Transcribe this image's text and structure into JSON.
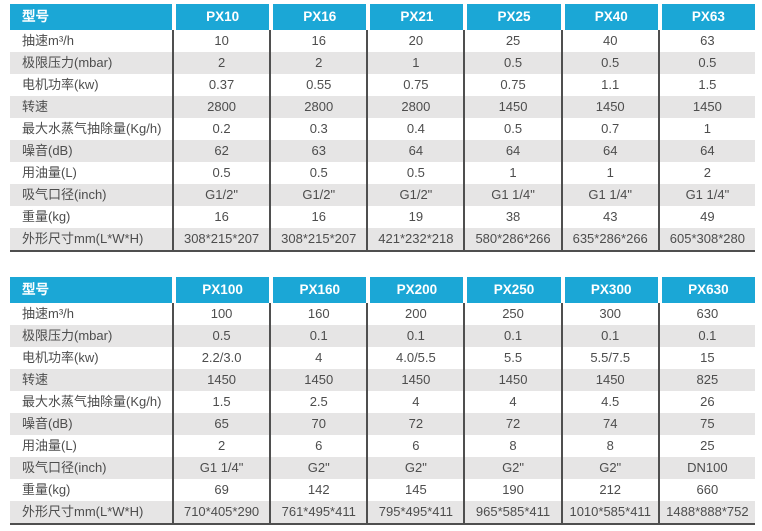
{
  "colors": {
    "header_bg": "#1ba7d6",
    "header_text": "#ffffff",
    "stripe_gray": "#e6e5e5",
    "body_text": "#4d4d4d",
    "separator": "#4f4f4f"
  },
  "tables": [
    {
      "corner_label": "型号",
      "columns": [
        "PX10",
        "PX16",
        "PX21",
        "PX25",
        "PX40",
        "PX63"
      ],
      "rows": [
        {
          "label": "抽速m³/h",
          "values": [
            "10",
            "16",
            "20",
            "25",
            "40",
            "63"
          ]
        },
        {
          "label": "极限压力(mbar)",
          "values": [
            "2",
            "2",
            "1",
            "0.5",
            "0.5",
            "0.5"
          ]
        },
        {
          "label": "电机功率(kw)",
          "values": [
            "0.37",
            "0.55",
            "0.75",
            "0.75",
            "1.1",
            "1.5"
          ]
        },
        {
          "label": "转速",
          "values": [
            "2800",
            "2800",
            "2800",
            "1450",
            "1450",
            "1450"
          ]
        },
        {
          "label": "最大水蒸气抽除量(Kg/h)",
          "values": [
            "0.2",
            "0.3",
            "0.4",
            "0.5",
            "0.7",
            "1"
          ]
        },
        {
          "label": "噪音(dB)",
          "values": [
            "62",
            "63",
            "64",
            "64",
            "64",
            "64"
          ]
        },
        {
          "label": "用油量(L)",
          "values": [
            "0.5",
            "0.5",
            "0.5",
            "1",
            "1",
            "2"
          ]
        },
        {
          "label": "吸气口径(inch)",
          "values": [
            "G1/2\"",
            "G1/2\"",
            "G1/2\"",
            "G1 1/4\"",
            "G1 1/4\"",
            "G1 1/4\""
          ]
        },
        {
          "label": "重量(kg)",
          "values": [
            "16",
            "16",
            "19",
            "38",
            "43",
            "49"
          ]
        },
        {
          "label": "外形尺寸mm(L*W*H)",
          "values": [
            "308*215*207",
            "308*215*207",
            "421*232*218",
            "580*286*266",
            "635*286*266",
            "605*308*280"
          ]
        }
      ]
    },
    {
      "corner_label": "型号",
      "columns": [
        "PX100",
        "PX160",
        "PX200",
        "PX250",
        "PX300",
        "PX630"
      ],
      "rows": [
        {
          "label": "抽速m³/h",
          "values": [
            "100",
            "160",
            "200",
            "250",
            "300",
            "630"
          ]
        },
        {
          "label": "极限压力(mbar)",
          "values": [
            "0.5",
            "0.1",
            "0.1",
            "0.1",
            "0.1",
            "0.1"
          ]
        },
        {
          "label": "电机功率(kw)",
          "values": [
            "2.2/3.0",
            "4",
            "4.0/5.5",
            "5.5",
            "5.5/7.5",
            "15"
          ]
        },
        {
          "label": "转速",
          "values": [
            "1450",
            "1450",
            "1450",
            "1450",
            "1450",
            "825"
          ]
        },
        {
          "label": "最大水蒸气抽除量(Kg/h)",
          "values": [
            "1.5",
            "2.5",
            "4",
            "4",
            "4.5",
            "26"
          ]
        },
        {
          "label": "噪音(dB)",
          "values": [
            "65",
            "70",
            "72",
            "72",
            "74",
            "75"
          ]
        },
        {
          "label": "用油量(L)",
          "values": [
            "2",
            "6",
            "6",
            "8",
            "8",
            "25"
          ]
        },
        {
          "label": "吸气口径(inch)",
          "values": [
            "G1 1/4\"",
            "G2\"",
            "G2\"",
            "G2\"",
            "G2\"",
            "DN100"
          ]
        },
        {
          "label": "重量(kg)",
          "values": [
            "69",
            "142",
            "145",
            "190",
            "212",
            "660"
          ]
        },
        {
          "label": "外形尺寸mm(L*W*H)",
          "values": [
            "710*405*290",
            "761*495*411",
            "795*495*411",
            "965*585*411",
            "1010*585*411",
            "1488*888*752"
          ]
        }
      ]
    }
  ]
}
